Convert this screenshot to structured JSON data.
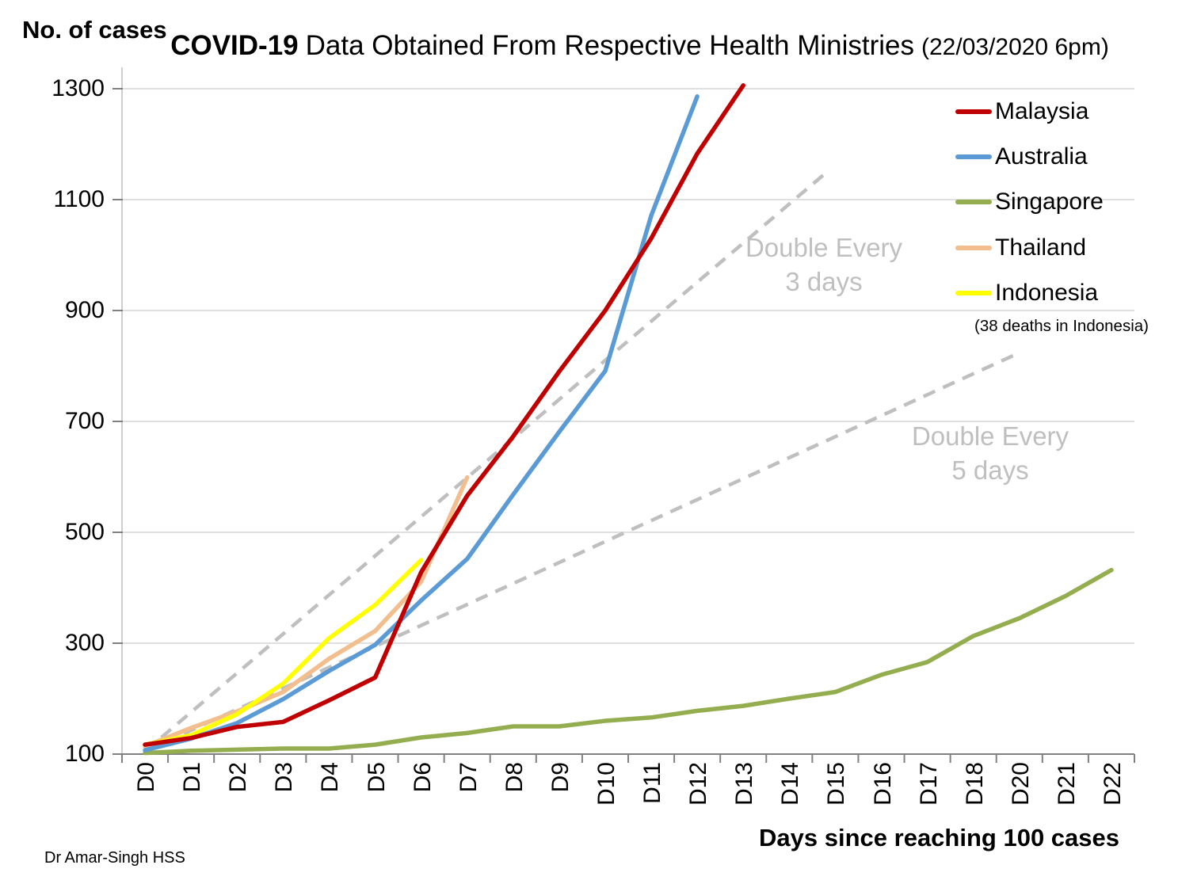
{
  "chart_data": {
    "type": "line",
    "title": "COVID-19 Data Obtained From Respective Health Ministries (22/03/2020 6pm)",
    "title_parts": {
      "bold": "COVID-19",
      "main": "Data Obtained From Respective Health Ministries",
      "suffix": "(22/03/2020 6pm)"
    },
    "xlabel": "Days since reaching 100 cases",
    "ylabel": "No. of cases",
    "categories": [
      "D0",
      "D1",
      "D2",
      "D3",
      "D4",
      "D5",
      "D6",
      "D7",
      "D8",
      "D9",
      "D10",
      "D11",
      "D12",
      "D13",
      "D14",
      "D15",
      "D16",
      "D17",
      "D18",
      "D20",
      "D21",
      "D22"
    ],
    "ylim": [
      100,
      1300
    ],
    "yticks": [
      100,
      300,
      500,
      700,
      900,
      1100,
      1300
    ],
    "grid": true,
    "legend_position": "top-right",
    "series": [
      {
        "name": "Malaysia",
        "color": "#C00000",
        "values": [
          117,
          129,
          149,
          158,
          197,
          238,
          428,
          566,
          673,
          790,
          900,
          1030,
          1183,
          1306
        ]
      },
      {
        "name": "Australia",
        "color": "#5B9BD5",
        "values": [
          107,
          128,
          156,
          199,
          250,
          297,
          377,
          452,
          568,
          681,
          791,
          1071,
          1286
        ]
      },
      {
        "name": "Singapore",
        "color": "#94AD4F",
        "values": [
          102,
          106,
          108,
          110,
          110,
          117,
          130,
          138,
          150,
          150,
          160,
          166,
          178,
          187,
          200,
          212,
          243,
          266,
          313,
          345,
          385,
          432
        ]
      },
      {
        "name": "Thailand",
        "color": "#F3BE8E",
        "values": [
          114,
          147,
          177,
          212,
          272,
          322,
          411,
          599
        ]
      },
      {
        "name": "Indonesia",
        "color": "#FFFF00",
        "values": [
          117,
          134,
          172,
          227,
          309,
          369,
          450
        ]
      }
    ],
    "guides": [
      {
        "label": "Double Every 3 days",
        "label_lines": [
          "Double Every",
          "3 days"
        ],
        "from_day": 0,
        "from_value": 105,
        "to_day": 14.75,
        "to_value": 1145
      },
      {
        "label": "Double Every 5 days",
        "label_lines": [
          "Double Every",
          "5 days"
        ],
        "from_day": 0,
        "from_value": 105,
        "to_day": 18.9,
        "to_value": 820
      }
    ],
    "legend_note": "(38 deaths in Indonesia)",
    "credit": "Dr Amar-Singh HSS",
    "colors": {
      "grid": "#D6D6D6",
      "axis": "#808080",
      "axis_line_light": "#BFBFBF",
      "guide": "#BFBFBF",
      "guide_text": "#BFBFBF",
      "text": "#000000"
    }
  }
}
